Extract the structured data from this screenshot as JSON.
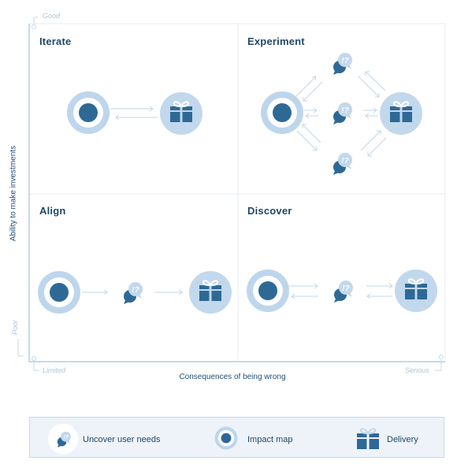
{
  "quadrants": {
    "iterate": "Iterate",
    "experiment": "Experiment",
    "align": "Align",
    "discover": "Discover"
  },
  "axes": {
    "y_label": "Ability to make investments",
    "y_top": "Good",
    "y_bottom": "Poor",
    "x_label": "Consequences of being wrong",
    "x_left": "Limited",
    "x_right": "Serious"
  },
  "legend": {
    "uncover": "Uncover user needs",
    "impact": "Impact map",
    "delivery": "Delivery"
  },
  "icons": {
    "impact": "impact-map-icon",
    "delivery": "gift-icon",
    "uncover": "chat-question-icon"
  },
  "colors": {
    "dark": "#2e6996",
    "ring": "#b9d4ea",
    "light_bg": "#c2d8ec",
    "panel_line": "#e1ebf4",
    "axis": "#c5daea"
  }
}
